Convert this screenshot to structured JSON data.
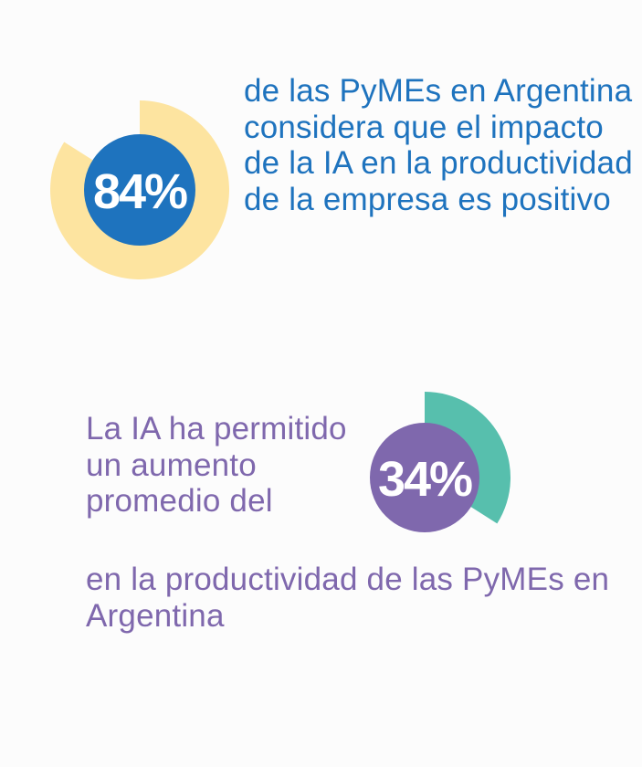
{
  "chart_data": [
    {
      "type": "pie",
      "value": 84,
      "value_label": "84%",
      "caption": "de las PyMEs en Argentina considera que el impacto de la IA en la productividad de la empresa es positivo",
      "colors": {
        "ring": "#fde4a0",
        "inner": "#1e73be",
        "text": "#1e73be"
      }
    },
    {
      "type": "pie",
      "value": 34,
      "value_label": "34%",
      "caption_before": "La IA ha permitido un aumento promedio del",
      "caption_after": "en la productividad de las PyMEs en Argentina",
      "colors": {
        "ring": "#57bfad",
        "inner": "#7f68ad",
        "text": "#7f68ad"
      }
    }
  ]
}
